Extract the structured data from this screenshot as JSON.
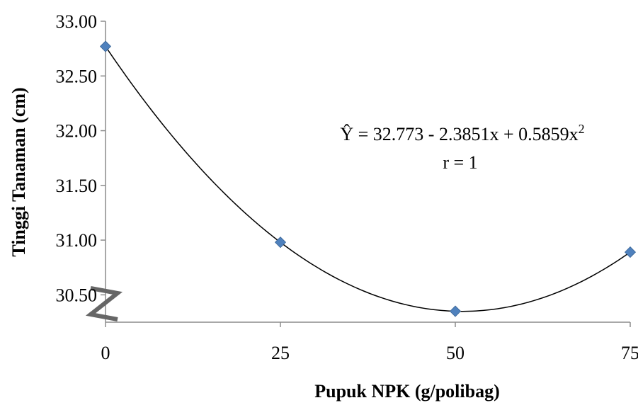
{
  "chart_data": {
    "type": "scatter",
    "title": "",
    "xlabel": "Pupuk NPK (g/polibag)",
    "ylabel": "Tinggi Tanaman (cm)",
    "x": [
      0,
      25,
      50,
      75
    ],
    "xticks": [
      "0",
      "25",
      "50",
      "75"
    ],
    "ylim": [
      30.25,
      33.0
    ],
    "yticks": [
      "30.50",
      "31.00",
      "31.50",
      "32.00",
      "32.50",
      "33.00"
    ],
    "ytick_values": [
      30.5,
      31.0,
      31.5,
      32.0,
      32.5,
      33.0
    ],
    "series": [
      {
        "values": [
          32.77,
          30.98,
          30.35,
          30.89
        ],
        "marker": "diamond",
        "color": "#4F81BD"
      }
    ],
    "trendline": {
      "type": "polynomial",
      "equation_prefix": "Ŷ = 32.773 - 2.3851x + 0.5859x",
      "equation_exponent": "2",
      "r_label": "r = 1",
      "color": "#000000"
    },
    "axis_break": true,
    "grid": false
  }
}
